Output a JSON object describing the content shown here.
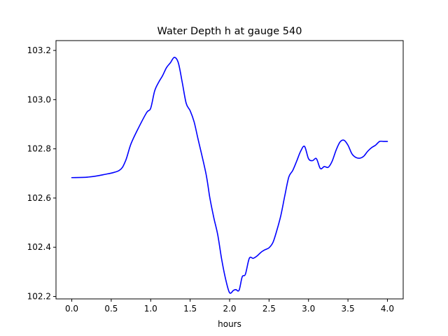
{
  "chart_data": {
    "type": "line",
    "title": "Water Depth h at gauge 540",
    "xlabel": "hours",
    "ylabel": "",
    "xlim": [
      -0.2,
      4.2
    ],
    "ylim": [
      102.19,
      103.24
    ],
    "xticks": [
      0.0,
      0.5,
      1.0,
      1.5,
      2.0,
      2.5,
      3.0,
      3.5,
      4.0
    ],
    "xtick_labels": [
      "0.0",
      "0.5",
      "1.0",
      "1.5",
      "2.0",
      "2.5",
      "3.0",
      "3.5",
      "4.0"
    ],
    "yticks": [
      102.2,
      102.4,
      102.6,
      102.8,
      103.0,
      103.2
    ],
    "ytick_labels": [
      "102.2",
      "102.4",
      "102.6",
      "102.8",
      "103.0",
      "103.2"
    ],
    "grid": false,
    "legend": "none",
    "series": [
      {
        "color": "#0000ff",
        "x": [
          0.0,
          0.2,
          0.4,
          0.6,
          0.68,
          0.75,
          0.85,
          0.95,
          1.0,
          1.05,
          1.1,
          1.15,
          1.2,
          1.25,
          1.3,
          1.35,
          1.4,
          1.45,
          1.5,
          1.55,
          1.6,
          1.7,
          1.75,
          1.8,
          1.85,
          1.9,
          1.95,
          2.0,
          2.05,
          2.08,
          2.12,
          2.16,
          2.2,
          2.25,
          2.3,
          2.35,
          2.4,
          2.45,
          2.5,
          2.55,
          2.6,
          2.65,
          2.7,
          2.75,
          2.8,
          2.85,
          2.9,
          2.95,
          3.0,
          3.05,
          3.1,
          3.15,
          3.2,
          3.25,
          3.3,
          3.35,
          3.4,
          3.45,
          3.5,
          3.55,
          3.6,
          3.65,
          3.7,
          3.75,
          3.8,
          3.85,
          3.9,
          3.95,
          4.0
        ],
        "values": [
          102.683,
          102.685,
          102.695,
          102.712,
          102.75,
          102.82,
          102.888,
          102.948,
          102.965,
          103.035,
          103.07,
          103.097,
          103.13,
          103.15,
          103.172,
          103.15,
          103.07,
          102.985,
          102.955,
          102.91,
          102.84,
          102.7,
          102.6,
          102.52,
          102.45,
          102.35,
          102.27,
          102.215,
          102.225,
          102.228,
          102.225,
          102.28,
          102.29,
          102.355,
          102.355,
          102.365,
          102.38,
          102.39,
          102.398,
          102.42,
          102.47,
          102.53,
          102.61,
          102.685,
          102.712,
          102.75,
          102.79,
          102.81,
          102.76,
          102.752,
          102.76,
          102.72,
          102.728,
          102.725,
          102.75,
          102.795,
          102.828,
          102.835,
          102.815,
          102.78,
          102.765,
          102.762,
          102.77,
          102.79,
          102.805,
          102.815,
          102.83,
          102.83,
          102.83
        ]
      }
    ]
  }
}
